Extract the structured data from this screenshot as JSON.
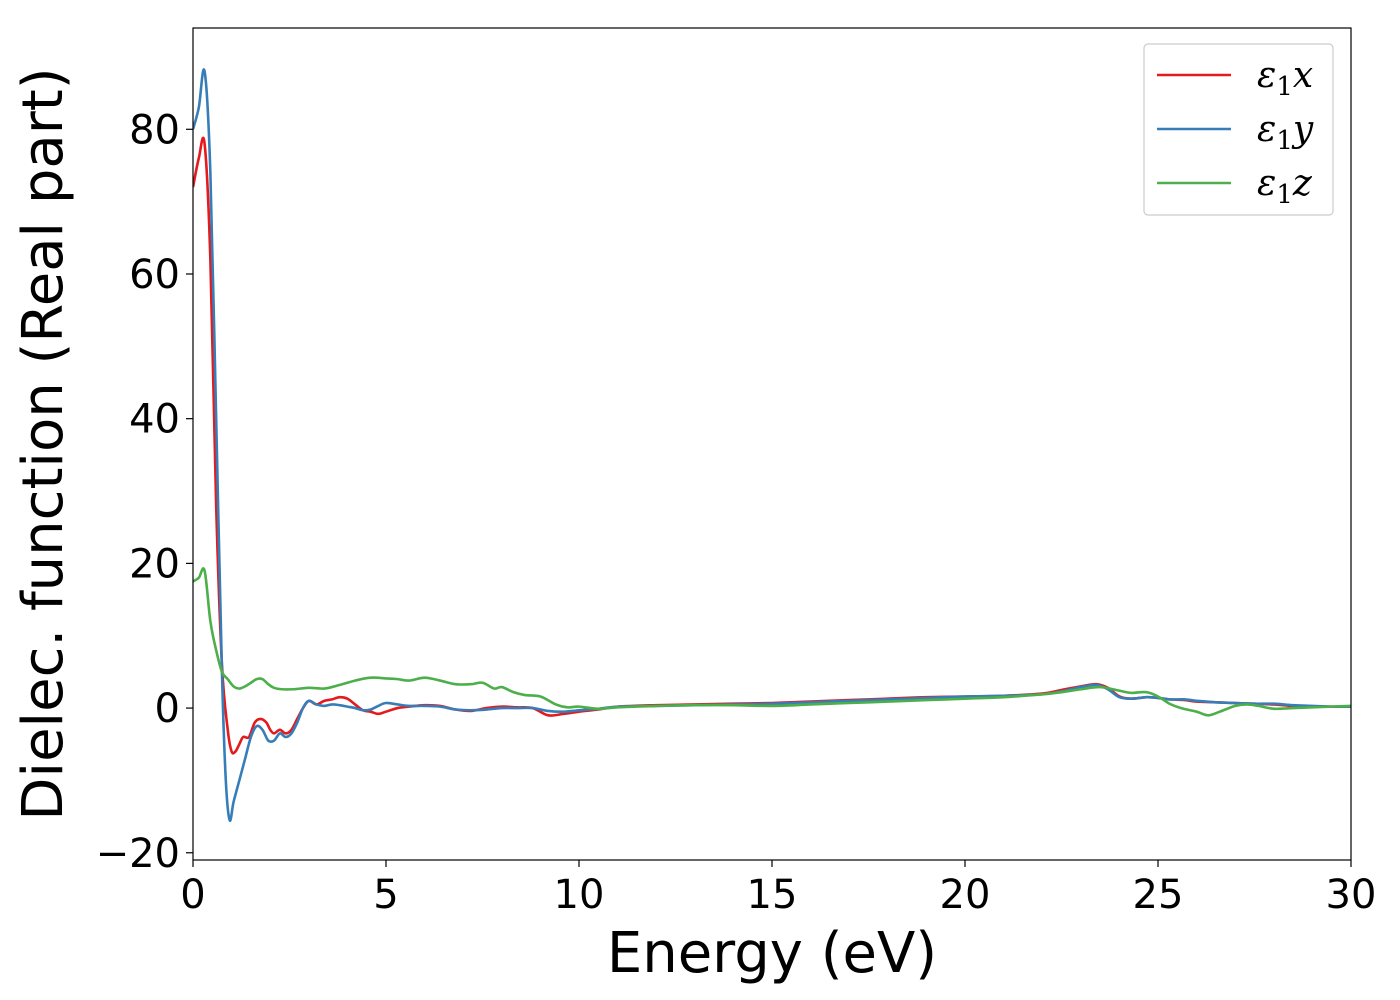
{
  "chart_data": {
    "type": "line",
    "xlabel": "Energy (eV)",
    "ylabel": "Dielec. function (Real part)",
    "xlim": [
      0,
      30
    ],
    "ylim": [
      -21,
      94
    ],
    "xticks": [
      0,
      5,
      10,
      15,
      20,
      25,
      30
    ],
    "xtick_labels": [
      "0",
      "5",
      "10",
      "15",
      "20",
      "25",
      "30"
    ],
    "yticks": [
      -20,
      0,
      20,
      40,
      60,
      80
    ],
    "ytick_labels": [
      "−20",
      "0",
      "20",
      "40",
      "60",
      "80"
    ],
    "grid": false,
    "legend_position": "top-right",
    "series": [
      {
        "name": "ε1x",
        "name_main": "ε",
        "name_sub": "1",
        "name_tail": "x",
        "color": "#e41a1c",
        "x": [
          0,
          0.15,
          0.3,
          0.45,
          0.6,
          0.75,
          0.9,
          1.0,
          1.1,
          1.2,
          1.3,
          1.45,
          1.6,
          1.75,
          1.9,
          2.0,
          2.1,
          2.25,
          2.4,
          2.55,
          2.7,
          2.85,
          3.0,
          3.2,
          3.4,
          3.6,
          3.8,
          4.0,
          4.2,
          4.4,
          4.6,
          4.8,
          5.0,
          5.3,
          5.6,
          6.0,
          6.4,
          6.8,
          7.2,
          7.6,
          8.0,
          8.4,
          8.8,
          9.2,
          9.6,
          10.0,
          10.5,
          11.0,
          12.0,
          13.0,
          14.0,
          15.0,
          16.0,
          17.0,
          18.0,
          19.0,
          20.0,
          21.0,
          22.0,
          22.5,
          23.0,
          23.4,
          23.7,
          24.0,
          24.3,
          24.7,
          25.0,
          25.3,
          25.7,
          26.0,
          26.5,
          27.0,
          27.5,
          28.0,
          28.5,
          29.0,
          29.5,
          30.0
        ],
        "y": [
          72,
          76,
          78,
          62,
          28,
          6,
          -3,
          -6,
          -6,
          -5,
          -4,
          -4,
          -2,
          -1.5,
          -2,
          -3,
          -3.5,
          -3,
          -3.5,
          -3,
          -1.5,
          0,
          1,
          0.5,
          1,
          1.2,
          1.5,
          1.3,
          0.5,
          -0.3,
          -0.5,
          -0.8,
          -0.5,
          0,
          0.2,
          0.4,
          0.3,
          -0.2,
          -0.4,
          0,
          0.2,
          0.1,
          0,
          -1,
          -0.8,
          -0.5,
          -0.2,
          0.2,
          0.4,
          0.5,
          0.6,
          0.7,
          0.9,
          1.1,
          1.3,
          1.5,
          1.6,
          1.7,
          2.0,
          2.5,
          3.0,
          3.3,
          2.8,
          1.6,
          1.3,
          1.5,
          1.4,
          1.2,
          1.1,
          0.9,
          0.8,
          0.7,
          0.6,
          0.5,
          0.3,
          0.2,
          0.2,
          0.2
        ]
      },
      {
        "name": "ε1y",
        "name_main": "ε",
        "name_sub": "1",
        "name_tail": "y",
        "color": "#377eb8",
        "x": [
          0,
          0.15,
          0.3,
          0.45,
          0.6,
          0.75,
          0.85,
          0.95,
          1.05,
          1.2,
          1.35,
          1.5,
          1.65,
          1.8,
          1.95,
          2.1,
          2.25,
          2.4,
          2.55,
          2.7,
          2.85,
          3.0,
          3.2,
          3.4,
          3.6,
          3.8,
          4.0,
          4.2,
          4.4,
          4.6,
          4.8,
          5.0,
          5.3,
          5.6,
          6.0,
          6.4,
          6.8,
          7.2,
          7.6,
          8.0,
          8.4,
          8.8,
          9.2,
          9.6,
          10.0,
          10.5,
          11.0,
          12.0,
          13.0,
          14.0,
          15.0,
          16.0,
          17.0,
          18.0,
          19.0,
          20.0,
          21.0,
          22.0,
          22.5,
          23.0,
          23.4,
          23.7,
          24.0,
          24.3,
          24.7,
          25.0,
          25.3,
          25.7,
          26.0,
          26.5,
          27.0,
          27.5,
          28.0,
          28.5,
          29.0,
          29.5,
          30.0
        ],
        "y": [
          80,
          83,
          88,
          74,
          40,
          5,
          -10,
          -15.5,
          -13,
          -10,
          -7,
          -4,
          -2.5,
          -3,
          -4.5,
          -4.5,
          -3.5,
          -4,
          -3.5,
          -2,
          0,
          1,
          0.5,
          0.3,
          0.5,
          0.4,
          0.2,
          0,
          -0.3,
          -0.2,
          0.3,
          0.7,
          0.5,
          0.3,
          0.3,
          0.2,
          -0.2,
          -0.3,
          -0.2,
          0,
          0,
          0,
          -0.4,
          -0.5,
          -0.3,
          -0.1,
          0.2,
          0.3,
          0.4,
          0.5,
          0.6,
          0.8,
          1.0,
          1.2,
          1.4,
          1.6,
          1.7,
          1.9,
          2.3,
          2.9,
          3.2,
          2.6,
          1.5,
          1.3,
          1.5,
          1.4,
          1.2,
          1.2,
          1.0,
          0.8,
          0.7,
          0.6,
          0.6,
          0.4,
          0.3,
          0.2,
          0.2
        ]
      },
      {
        "name": "ε1z",
        "name_main": "ε",
        "name_sub": "1",
        "name_tail": "z",
        "color": "#4daf4a",
        "x": [
          0,
          0.15,
          0.3,
          0.45,
          0.6,
          0.75,
          0.9,
          1.05,
          1.2,
          1.35,
          1.5,
          1.65,
          1.8,
          1.95,
          2.1,
          2.3,
          2.6,
          3.0,
          3.4,
          3.8,
          4.2,
          4.6,
          5.0,
          5.3,
          5.6,
          6.0,
          6.4,
          6.8,
          7.2,
          7.5,
          7.8,
          8.0,
          8.3,
          8.6,
          9.0,
          9.4,
          9.7,
          10.0,
          10.5,
          11.0,
          12.0,
          13.0,
          14.0,
          15.0,
          16.0,
          17.0,
          18.0,
          19.0,
          20.0,
          21.0,
          22.0,
          22.5,
          23.0,
          23.5,
          24.0,
          24.3,
          24.7,
          25.0,
          25.3,
          25.6,
          26.0,
          26.3,
          26.6,
          27.0,
          27.3,
          27.6,
          28.0,
          28.5,
          29.0,
          29.5,
          30.0
        ],
        "y": [
          17.5,
          18,
          19,
          12,
          8,
          5,
          4,
          3,
          2.7,
          3,
          3.5,
          4,
          4,
          3.3,
          2.8,
          2.6,
          2.6,
          2.8,
          2.7,
          3.2,
          3.8,
          4.2,
          4.1,
          4,
          3.8,
          4.2,
          3.8,
          3.3,
          3.3,
          3.5,
          2.7,
          2.9,
          2.2,
          1.8,
          1.6,
          0.5,
          0.1,
          0.2,
          -0.1,
          0.1,
          0.3,
          0.4,
          0.4,
          0.3,
          0.5,
          0.7,
          0.9,
          1.1,
          1.3,
          1.5,
          1.9,
          2.2,
          2.6,
          2.9,
          2.4,
          2.1,
          2.2,
          1.6,
          0.6,
          0,
          -0.5,
          -1.0,
          -0.5,
          0.3,
          0.5,
          0.3,
          -0.1,
          0,
          0.1,
          0.2,
          0.3
        ]
      }
    ]
  }
}
